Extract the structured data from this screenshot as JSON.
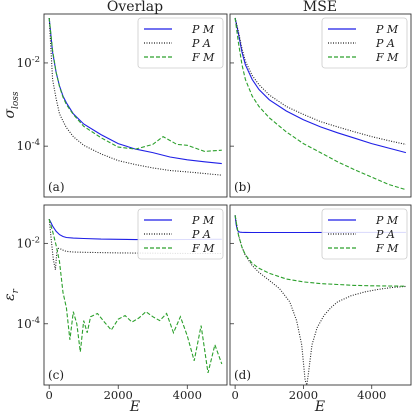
{
  "figure": {
    "col_titles": [
      "Overlap",
      "MSE"
    ],
    "y_label_top": "σ_loss",
    "y_label_bottom": "ε_r",
    "x_label": "E",
    "colors": {
      "PM": "#1f1fe6",
      "PA": "#222222",
      "FM": "#2ca02c"
    }
  },
  "chart_data": [
    {
      "panel": "(a)",
      "type": "line",
      "yscale": "log",
      "xlim": [
        -150,
        5150
      ],
      "ylim": [
        6e-06,
        0.15
      ],
      "xticks": [],
      "yticks": [
        0.01,
        0.0001
      ],
      "ytick_labels": [
        "10^-2",
        "10^-4"
      ],
      "legend": "top-right",
      "series": [
        {
          "name": "PM",
          "style": "solid",
          "x": [
            0,
            100,
            200,
            300,
            400,
            500,
            700,
            1000,
            1500,
            2000,
            2500,
            3000,
            3500,
            4000,
            4500,
            5000
          ],
          "y": [
            0.12,
            0.018,
            0.006,
            0.0028,
            0.0016,
            0.0011,
            0.0006,
            0.00034,
            0.00019,
            0.000115,
            8.5e-05,
            7e-05,
            5.5e-05,
            4.7e-05,
            4.2e-05,
            3.8e-05
          ]
        },
        {
          "name": "PA",
          "style": "dotted",
          "x": [
            0,
            100,
            200,
            300,
            400,
            500,
            700,
            1000,
            1500,
            2000,
            2500,
            3000,
            3500,
            4000,
            4500,
            5000
          ],
          "y": [
            0.12,
            0.004,
            0.0014,
            0.0006,
            0.0004,
            0.00028,
            0.00017,
            0.000105,
            6.5e-05,
            4.5e-05,
            3.6e-05,
            3e-05,
            2.6e-05,
            2.4e-05,
            2.2e-05,
            2e-05
          ]
        },
        {
          "name": "FM",
          "style": "dashed",
          "x": [
            0,
            100,
            200,
            300,
            400,
            500,
            700,
            1000,
            1500,
            2000,
            2500,
            3000,
            3300,
            3700,
            4000,
            4500,
            5000
          ],
          "y": [
            0.12,
            0.02,
            0.006,
            0.0027,
            0.0015,
            0.001,
            0.00058,
            0.0003,
            0.00016,
            9.5e-05,
            8.5e-05,
            0.00011,
            0.00017,
            0.00011,
            0.000105,
            7.5e-05,
            8e-05
          ]
        }
      ]
    },
    {
      "panel": "(b)",
      "type": "line",
      "yscale": "log",
      "xlim": [
        -150,
        5150
      ],
      "ylim": [
        6e-06,
        0.15
      ],
      "xticks": [],
      "yticks": [
        0.01,
        0.0001
      ],
      "legend": "top-right",
      "series": [
        {
          "name": "PM",
          "style": "solid",
          "x": [
            0,
            100,
            200,
            300,
            500,
            700,
            1000,
            1500,
            2000,
            2500,
            3000,
            3500,
            4000,
            4500,
            5000
          ],
          "y": [
            0.12,
            0.05,
            0.018,
            0.009,
            0.004,
            0.0023,
            0.0013,
            0.0007,
            0.00043,
            0.00029,
            0.00021,
            0.000155,
            0.000115,
            9e-05,
            7e-05
          ]
        },
        {
          "name": "PA",
          "style": "dotted",
          "x": [
            0,
            100,
            200,
            300,
            500,
            700,
            1000,
            1500,
            2000,
            2500,
            3000,
            3500,
            4000,
            4500,
            5000
          ],
          "y": [
            0.12,
            0.055,
            0.022,
            0.011,
            0.005,
            0.003,
            0.0017,
            0.0009,
            0.00058,
            0.00039,
            0.00029,
            0.00022,
            0.00017,
            0.000135,
            0.00011
          ]
        },
        {
          "name": "FM",
          "style": "dashed",
          "x": [
            0,
            100,
            200,
            300,
            500,
            700,
            1000,
            1500,
            2000,
            2500,
            3000,
            3500,
            4000,
            4500,
            5000
          ],
          "y": [
            0.12,
            0.03,
            0.009,
            0.004,
            0.0016,
            0.0009,
            0.00048,
            0.00022,
            0.000115,
            7e-05,
            4.2e-05,
            2.7e-05,
            1.8e-05,
            1.2e-05,
            9e-06
          ]
        }
      ]
    },
    {
      "panel": "(c)",
      "type": "line",
      "yscale": "log",
      "xlim": [
        -150,
        5150
      ],
      "ylim": [
        3e-06,
        0.09
      ],
      "xticks": [
        0,
        2000,
        4000
      ],
      "yticks": [
        0.01,
        0.0001
      ],
      "ytick_labels": [
        "10^-2",
        "10^-4"
      ],
      "legend": "top-right",
      "series": [
        {
          "name": "PM",
          "style": "solid",
          "x": [
            0,
            50,
            100,
            200,
            300,
            400,
            500,
            700,
            1000,
            1500,
            2000,
            2500,
            3000,
            3500,
            4000,
            4500,
            5000
          ],
          "y": [
            0.04,
            0.033,
            0.027,
            0.02,
            0.0165,
            0.0148,
            0.014,
            0.0135,
            0.0132,
            0.0128,
            0.0126,
            0.0124,
            0.0124,
            0.0124,
            0.0125,
            0.0126,
            0.0126
          ]
        },
        {
          "name": "PA",
          "style": "dotted",
          "x": [
            0,
            60,
            120,
            180,
            220,
            260,
            300,
            400,
            500,
            700,
            1000,
            1500,
            2000,
            3000,
            4000,
            5000
          ],
          "y": [
            0.04,
            0.012,
            0.004,
            0.0022,
            0.006,
            0.0075,
            0.0075,
            0.0068,
            0.0063,
            0.0061,
            0.006,
            0.0059,
            0.0058,
            0.0057,
            0.0056,
            0.0056
          ]
        },
        {
          "name": "FM",
          "style": "dashed",
          "x": [
            0,
            100,
            200,
            300,
            400,
            500,
            600,
            700,
            800,
            900,
            1000,
            1100,
            1200,
            1400,
            1600,
            1800,
            2000,
            2200,
            2400,
            2600,
            2800,
            3000,
            3200,
            3400,
            3600,
            3800,
            4000,
            4200,
            4400,
            4600,
            4800,
            5000
          ],
          "y": [
            0.04,
            0.02,
            0.009,
            0.0035,
            0.0006,
            0.00025,
            4e-05,
            0.0002,
            0.0001,
            2e-05,
            0.00012,
            6e-05,
            0.00015,
            0.00018,
            0.00011,
            7e-05,
            0.00013,
            0.00016,
            0.00011,
            0.00014,
            0.0002,
            0.00015,
            0.00012,
            0.00018,
            6e-05,
            0.00015,
            5e-05,
            1.2e-05,
            9e-05,
            6e-06,
            3e-05,
            1e-05
          ]
        }
      ]
    },
    {
      "panel": "(d)",
      "type": "line",
      "yscale": "log",
      "xlim": [
        -150,
        5150
      ],
      "ylim": [
        3e-06,
        0.09
      ],
      "xticks": [
        0,
        2000,
        4000
      ],
      "yticks": [
        0.01,
        0.0001
      ],
      "legend": "top-right",
      "series": [
        {
          "name": "PM",
          "style": "solid",
          "x": [
            0,
            30,
            60,
            100,
            150,
            200,
            300,
            500,
            1000,
            2000,
            3000,
            4000,
            5000
          ],
          "y": [
            0.05,
            0.03,
            0.022,
            0.0195,
            0.019,
            0.0188,
            0.0187,
            0.0186,
            0.0186,
            0.0186,
            0.0187,
            0.0187,
            0.0187
          ]
        },
        {
          "name": "PA",
          "style": "dotted",
          "x": [
            0,
            100,
            200,
            300,
            500,
            700,
            1000,
            1300,
            1600,
            1800,
            1950,
            2050,
            2100,
            2150,
            2250,
            2400,
            2600,
            2800,
            3000,
            3400,
            3800,
            4200,
            4600,
            5000
          ],
          "y": [
            0.05,
            0.016,
            0.008,
            0.005,
            0.0028,
            0.0019,
            0.0012,
            0.00075,
            0.00035,
            0.00012,
            3e-05,
            4e-06,
            3e-06,
            6e-06,
            3e-05,
            8e-05,
            0.00016,
            0.00025,
            0.00035,
            0.0005,
            0.00062,
            0.00072,
            0.0008,
            0.00085
          ]
        },
        {
          "name": "FM",
          "style": "dashed",
          "x": [
            0,
            100,
            200,
            300,
            500,
            700,
            1000,
            1500,
            2000,
            2500,
            3000,
            3500,
            4000,
            4500,
            5000
          ],
          "y": [
            0.05,
            0.016,
            0.008,
            0.0052,
            0.0032,
            0.0024,
            0.0018,
            0.0013,
            0.0011,
            0.001,
            0.00095,
            0.0009,
            0.00088,
            0.00087,
            0.00086
          ]
        }
      ]
    }
  ]
}
